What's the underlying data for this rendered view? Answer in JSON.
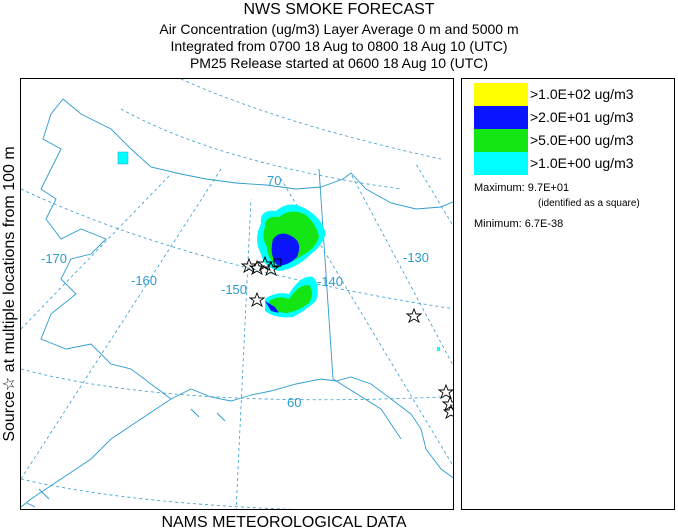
{
  "header": {
    "title": "NWS SMOKE FORECAST",
    "line2": "Air Concentration (ug/m3) Layer Average    0 m and  5000 m",
    "line3": "Integrated from 0700 18 Aug to 0800 18 Aug 10 (UTC)",
    "line4": "PM25 Release started at 0600 18 Aug 10 (UTC)"
  },
  "side_label": "Source☆ at multiple locations  from  100 m",
  "footer": "NAMS METEOROLOGICAL DATA",
  "grid_labels": {
    "lat70": "70",
    "lat60": "60",
    "lon170": "-170",
    "lon160": "-160",
    "lon150": "-150",
    "lon140": "-140",
    "lon130": "-130"
  },
  "legend": [
    {
      "label": ">1.0E+02 ug/m3",
      "color": "#ffff00"
    },
    {
      "label": ">2.0E+01 ug/m3",
      "color": "#0a14ff"
    },
    {
      "label": ">5.0E+00 ug/m3",
      "color": "#14e614"
    },
    {
      "label": ">1.0E+00 ug/m3",
      "color": "#00ffff"
    }
  ],
  "stats": {
    "maximum": "Maximum: 9.7E+01",
    "maximum_note": "(identified as a square)",
    "minimum": "Minimum: 6.7E-38"
  },
  "colors": {
    "grid": "#2e9ccf",
    "coast": "#2e9ccf"
  }
}
